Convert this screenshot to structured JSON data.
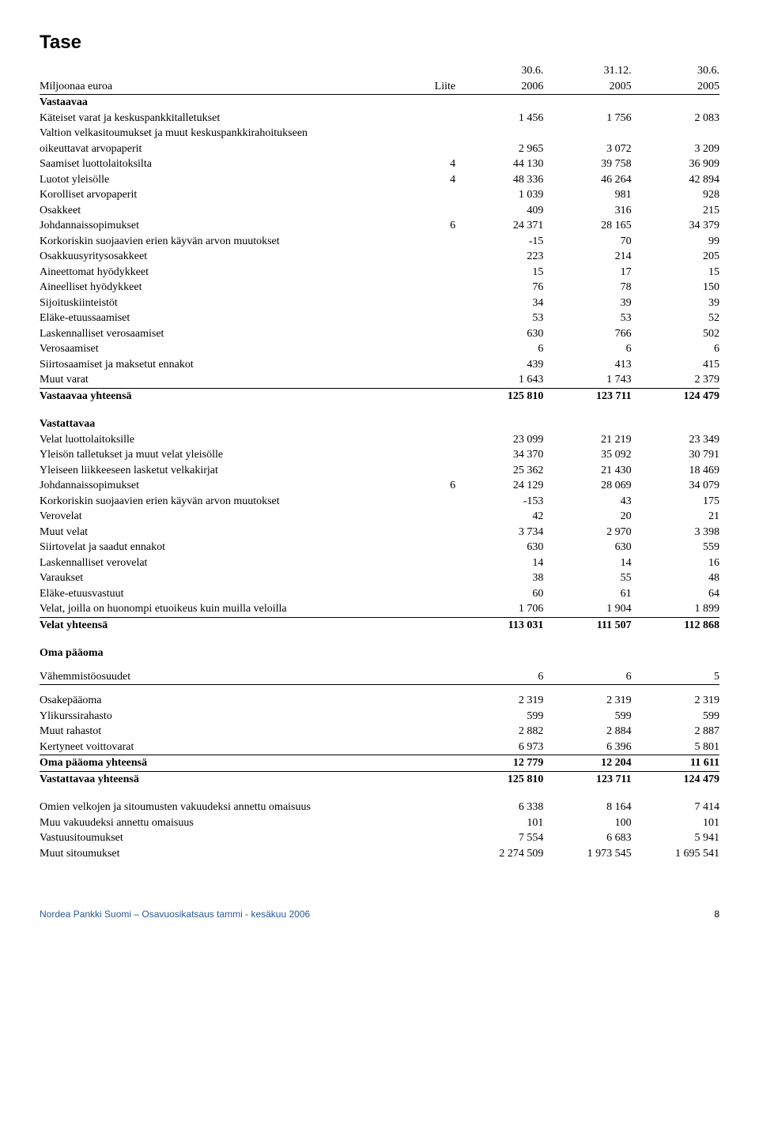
{
  "title": "Tase",
  "header": {
    "dates": [
      "30.6.",
      "31.12.",
      "30.6."
    ],
    "sub_left": "Miljoonaa euroa",
    "sub_note": "Liite",
    "sub_years": [
      "2006",
      "2005",
      "2005"
    ]
  },
  "assets": {
    "heading": "Vastaavaa",
    "rows": [
      {
        "label": "Käteiset varat ja keskuspankkitalletukset",
        "v": [
          "1 456",
          "1 756",
          "2 083"
        ]
      },
      {
        "label": "Valtion velkasitoumukset ja muut keskuspankkirahoitukseen",
        "v": [
          "",
          "",
          ""
        ]
      },
      {
        "label": "oikeuttavat arvopaperit",
        "v": [
          "2 965",
          "3 072",
          "3 209"
        ]
      },
      {
        "label": "Saamiset luottolaitoksilta",
        "note": "4",
        "v": [
          "44 130",
          "39 758",
          "36 909"
        ]
      },
      {
        "label": "Luotot yleisölle",
        "note": "4",
        "v": [
          "48 336",
          "46 264",
          "42 894"
        ]
      },
      {
        "label": "Korolliset arvopaperit",
        "v": [
          "1 039",
          "981",
          "928"
        ]
      },
      {
        "label": "Osakkeet",
        "v": [
          "409",
          "316",
          "215"
        ]
      },
      {
        "label": "Johdannaissopimukset",
        "note": "6",
        "v": [
          "24 371",
          "28 165",
          "34 379"
        ]
      },
      {
        "label": "Korkoriskin suojaavien erien käyvän arvon muutokset",
        "v": [
          "-15",
          "70",
          "99"
        ]
      },
      {
        "label": "Osakkuusyritysosakkeet",
        "v": [
          "223",
          "214",
          "205"
        ]
      },
      {
        "label": "Aineettomat hyödykkeet",
        "v": [
          "15",
          "17",
          "15"
        ]
      },
      {
        "label": "Aineelliset hyödykkeet",
        "v": [
          "76",
          "78",
          "150"
        ]
      },
      {
        "label": "Sijoituskiinteistöt",
        "v": [
          "34",
          "39",
          "39"
        ]
      },
      {
        "label": "Eläke-etuussaamiset",
        "v": [
          "53",
          "53",
          "52"
        ]
      },
      {
        "label": "Laskennalliset verosaamiset",
        "v": [
          "630",
          "766",
          "502"
        ]
      },
      {
        "label": "Verosaamiset",
        "v": [
          "6",
          "6",
          "6"
        ]
      },
      {
        "label": "Siirtosaamiset ja maksetut ennakot",
        "v": [
          "439",
          "413",
          "415"
        ]
      },
      {
        "label": "Muut varat",
        "v": [
          "1 643",
          "1 743",
          "2 379"
        ],
        "underline": true
      }
    ],
    "total": {
      "label": "Vastaavaa yhteensä",
      "v": [
        "125 810",
        "123 711",
        "124 479"
      ]
    }
  },
  "liabilities": {
    "heading": "Vastattavaa",
    "rows": [
      {
        "label": "Velat luottolaitoksille",
        "v": [
          "23 099",
          "21 219",
          "23 349"
        ]
      },
      {
        "label": "Yleisön talletukset ja muut velat yleisölle",
        "v": [
          "34 370",
          "35 092",
          "30 791"
        ]
      },
      {
        "label": "Yleiseen liikkeeseen lasketut velkakirjat",
        "v": [
          "25 362",
          "21 430",
          "18 469"
        ]
      },
      {
        "label": "Johdannaissopimukset",
        "note": "6",
        "v": [
          "24 129",
          "28 069",
          "34 079"
        ]
      },
      {
        "label": "Korkoriskin suojaavien erien käyvän arvon muutokset",
        "v": [
          "-153",
          "43",
          "175"
        ]
      },
      {
        "label": "Verovelat",
        "v": [
          "42",
          "20",
          "21"
        ]
      },
      {
        "label": "Muut velat",
        "v": [
          "3 734",
          "2 970",
          "3 398"
        ]
      },
      {
        "label": "Siirtovelat ja saadut ennakot",
        "v": [
          "630",
          "630",
          "559"
        ]
      },
      {
        "label": "Laskennalliset verovelat",
        "v": [
          "14",
          "14",
          "16"
        ]
      },
      {
        "label": "Varaukset",
        "v": [
          "38",
          "55",
          "48"
        ]
      },
      {
        "label": "Eläke-etuusvastuut",
        "v": [
          "60",
          "61",
          "64"
        ]
      },
      {
        "label": "Velat, joilla on huonompi etuoikeus kuin muilla veloilla",
        "v": [
          "1 706",
          "1 904",
          "1 899"
        ],
        "underline": true
      }
    ],
    "total": {
      "label": "Velat yhteensä",
      "v": [
        "113 031",
        "111 507",
        "112 868"
      ]
    }
  },
  "equity": {
    "heading": "Oma pääoma",
    "minority": {
      "label": "Vähemmistöosuudet",
      "v": [
        "6",
        "6",
        "5"
      ],
      "underline": true
    },
    "rows": [
      {
        "label": "Osakepääoma",
        "v": [
          "2 319",
          "2 319",
          "2 319"
        ]
      },
      {
        "label": "Ylikurssirahasto",
        "v": [
          "599",
          "599",
          "599"
        ]
      },
      {
        "label": "Muut rahastot",
        "v": [
          "2 882",
          "2 884",
          "2 887"
        ]
      },
      {
        "label": "Kertyneet voittovarat",
        "v": [
          "6 973",
          "6 396",
          "5 801"
        ],
        "underline": true
      }
    ],
    "total": {
      "label": "Oma pääoma yhteensä",
      "v": [
        "12 779",
        "12 204",
        "11 611"
      ],
      "underline": true
    },
    "liab_total": {
      "label": "Vastattavaa yhteensä",
      "v": [
        "125 810",
        "123 711",
        "124 479"
      ]
    }
  },
  "commitments": [
    {
      "label": "Omien velkojen ja sitoumusten vakuudeksi annettu omaisuus",
      "v": [
        "6 338",
        "8 164",
        "7 414"
      ]
    },
    {
      "label": "Muu vakuudeksi annettu omaisuus",
      "v": [
        "101",
        "100",
        "101"
      ]
    },
    {
      "label": "Vastuusitoumukset",
      "v": [
        "7 554",
        "6 683",
        "5 941"
      ]
    },
    {
      "label": "Muut sitoumukset",
      "v": [
        "2 274 509",
        "1 973 545",
        "1 695 541"
      ]
    }
  ],
  "footer": {
    "left": "Nordea Pankki Suomi – Osavuosikatsaus tammi - kesäkuu 2006",
    "page": "8"
  }
}
